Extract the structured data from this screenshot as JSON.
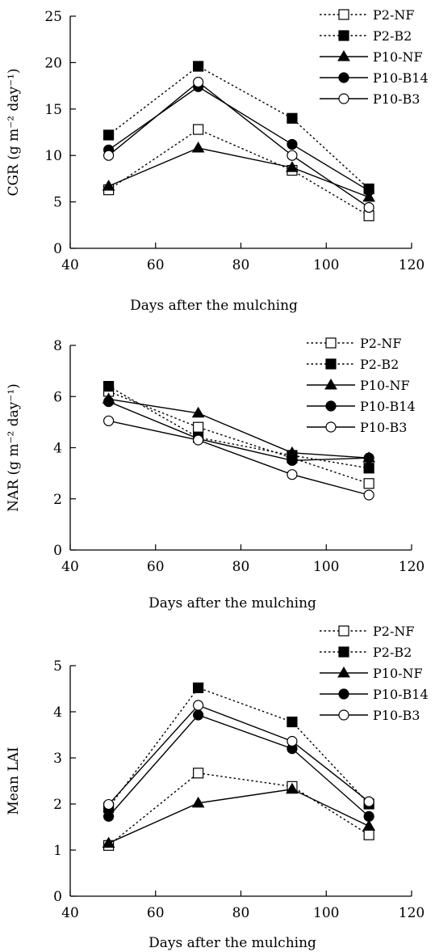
{
  "chart_data": [
    {
      "type": "line",
      "xlabel": "Days after the mulching",
      "ylabel": "CGR (g m⁻² day⁻¹)",
      "xlim": [
        40,
        120
      ],
      "ylim": [
        0,
        25
      ],
      "xticks": [
        40,
        60,
        80,
        100,
        120
      ],
      "yticks": [
        0,
        5,
        10,
        15,
        20,
        25
      ],
      "grid": false,
      "legend": "top-right",
      "x": [
        49,
        70,
        92,
        110
      ],
      "series": [
        {
          "name": "P2-NF",
          "marker": "open-square",
          "line": "dotted",
          "values": [
            6.3,
            12.8,
            8.4,
            3.5
          ]
        },
        {
          "name": "P2-B2",
          "marker": "filled-square",
          "line": "dotted",
          "values": [
            12.2,
            19.6,
            14.0,
            6.4
          ]
        },
        {
          "name": "P10-NF",
          "marker": "filled-triangle",
          "line": "solid",
          "values": [
            6.7,
            10.8,
            8.7,
            5.5
          ]
        },
        {
          "name": "P10-B14",
          "marker": "filled-circle",
          "line": "solid",
          "values": [
            10.6,
            17.4,
            11.2,
            6.2
          ]
        },
        {
          "name": "P10-B3",
          "marker": "open-circle",
          "line": "solid",
          "values": [
            10.0,
            17.9,
            10.0,
            4.4
          ]
        }
      ]
    },
    {
      "type": "line",
      "xlabel": "Days after the mulching",
      "ylabel": "NAR (g m⁻² day⁻¹)",
      "xlim": [
        40,
        120
      ],
      "ylim": [
        0,
        8
      ],
      "xticks": [
        40,
        60,
        80,
        100,
        120
      ],
      "yticks": [
        0,
        2,
        4,
        6,
        8
      ],
      "grid": false,
      "legend": "top-right",
      "x": [
        49,
        70,
        92,
        110
      ],
      "series": [
        {
          "name": "P2-NF",
          "marker": "open-square",
          "line": "dotted",
          "values": [
            6.2,
            4.8,
            3.6,
            2.6
          ]
        },
        {
          "name": "P2-B2",
          "marker": "filled-square",
          "line": "dotted",
          "values": [
            6.4,
            4.4,
            3.7,
            3.2
          ]
        },
        {
          "name": "P10-NF",
          "marker": "filled-triangle",
          "line": "solid",
          "values": [
            5.9,
            5.35,
            3.8,
            3.6
          ]
        },
        {
          "name": "P10-B14",
          "marker": "filled-circle",
          "line": "solid",
          "values": [
            5.8,
            4.35,
            3.5,
            3.6
          ]
        },
        {
          "name": "P10-B3",
          "marker": "open-circle",
          "line": "solid",
          "values": [
            5.05,
            4.3,
            2.95,
            2.15
          ]
        }
      ]
    },
    {
      "type": "line",
      "xlabel": "Days after the mulching",
      "ylabel": "Mean LAI",
      "xlim": [
        40,
        120
      ],
      "ylim": [
        0,
        5
      ],
      "xticks": [
        40,
        60,
        80,
        100,
        120
      ],
      "yticks": [
        0,
        1,
        2,
        3,
        4,
        5
      ],
      "grid": false,
      "legend": "top-right",
      "x": [
        49,
        70,
        92,
        110
      ],
      "series": [
        {
          "name": "P2-NF",
          "marker": "open-square",
          "line": "dotted",
          "values": [
            1.1,
            2.67,
            2.38,
            1.33
          ]
        },
        {
          "name": "P2-B2",
          "marker": "filled-square",
          "line": "dotted",
          "values": [
            1.92,
            4.52,
            3.78,
            2.0
          ]
        },
        {
          "name": "P10-NF",
          "marker": "filled-triangle",
          "line": "solid",
          "values": [
            1.15,
            2.02,
            2.32,
            1.52
          ]
        },
        {
          "name": "P10-B14",
          "marker": "filled-circle",
          "line": "solid",
          "values": [
            1.73,
            3.93,
            3.2,
            1.73
          ]
        },
        {
          "name": "P10-B3",
          "marker": "open-circle",
          "line": "solid",
          "values": [
            1.99,
            4.14,
            3.36,
            2.05
          ]
        }
      ]
    }
  ]
}
